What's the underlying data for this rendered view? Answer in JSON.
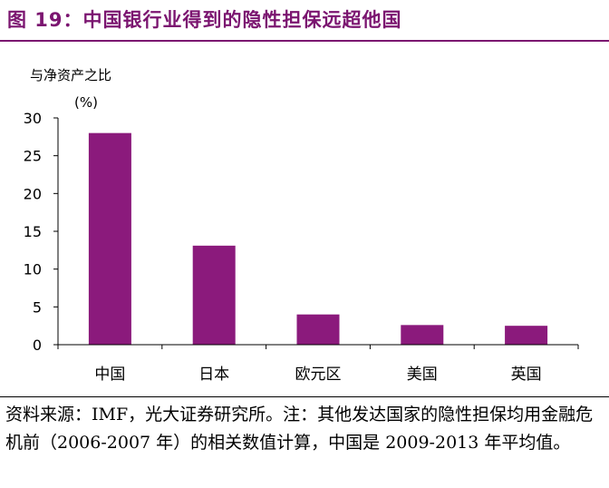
{
  "title": "图 19：中国银行业得到的隐性担保远超他国",
  "source_note": "资料来源：IMF，光大证券研究所。注：其他发达国家的隐性担保均用金融危机前（2006-2007 年）的相关数值计算，中国是 2009-2013 年平均值。",
  "colors": {
    "title": "#7b1570",
    "bar": "#8b1a7c",
    "axis": "#000000"
  },
  "chart_data": {
    "type": "bar",
    "title": "",
    "ylabel": "与净资产之比",
    "yunit": "(%)",
    "xlabel": "",
    "categories": [
      "中国",
      "日本",
      "欧元区",
      "美国",
      "英国"
    ],
    "values": [
      28,
      13.1,
      4,
      2.6,
      2.5
    ],
    "ylim": [
      0,
      30
    ],
    "yticks": [
      0,
      5,
      10,
      15,
      20,
      25,
      30
    ],
    "grid": false,
    "legend": "none"
  }
}
